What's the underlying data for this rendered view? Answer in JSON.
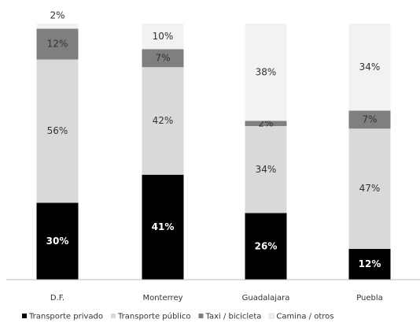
{
  "chart_data": {
    "type": "stacked-bar",
    "categories": [
      "D.F.",
      "Monterrey",
      "Guadalajara",
      "Puebla"
    ],
    "ylim": [
      0,
      100
    ],
    "series": [
      {
        "name": "Transporte privado",
        "color": "#000000",
        "values": [
          30,
          41,
          26,
          12
        ],
        "value_labels": [
          "30%",
          "41%",
          "26%",
          "12%"
        ]
      },
      {
        "name": "Transporte público",
        "color": "#d9d9d9",
        "values": [
          56,
          42,
          34,
          47
        ],
        "value_labels": [
          "56%",
          "42%",
          "34%",
          "47%"
        ]
      },
      {
        "name": "Taxi / bicicleta",
        "color": "#7f7f7f",
        "values": [
          12,
          7,
          2,
          7
        ],
        "value_labels": [
          "12%",
          "7%",
          "2%",
          "7%"
        ]
      },
      {
        "name": "Camina / otros",
        "color": "#f2f2f2",
        "values": [
          2,
          10,
          38,
          34
        ],
        "value_labels": [
          "2%",
          "10%",
          "38%",
          "34%"
        ]
      }
    ]
  }
}
